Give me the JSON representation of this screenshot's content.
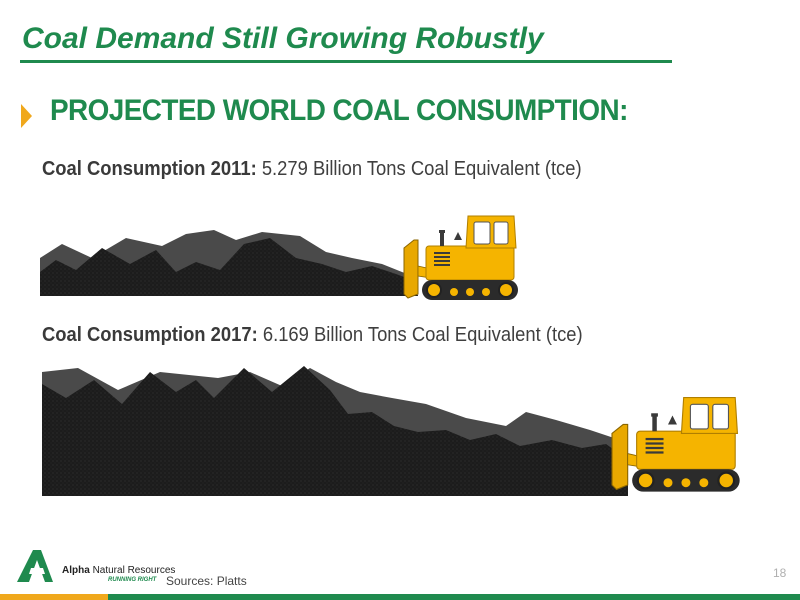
{
  "slide": {
    "title": "Coal Demand Still Growing Robustly",
    "section_heading": "PROJECTED WORLD COAL CONSUMPTION:",
    "rows": [
      {
        "label": "Coal Consumption 2011:",
        "value": "5.279 Billion Tons Coal Equivalent (tce)"
      },
      {
        "label": "Coal Consumption 2017:",
        "value": "6.169 Billion Tons Coal Equivalent (tce)"
      }
    ],
    "page_number": "18"
  },
  "footer": {
    "company_bold": "Alpha",
    "company_rest": "Natural Resources",
    "tagline": "RUNNING RIGHT",
    "sources": "Sources: Platts"
  },
  "colors": {
    "brand_green": "#1f8a4e",
    "accent_orange": "#f0a81c",
    "coal_dark": "#1e1e1e",
    "coal_gray": "#4a4a4a",
    "bulldozer_yellow": "#f5b400"
  },
  "icons": [
    "section-arrow-icon",
    "coal-pile-2011",
    "coal-pile-2017",
    "bulldozer-icon",
    "alpha-logo-icon"
  ]
}
